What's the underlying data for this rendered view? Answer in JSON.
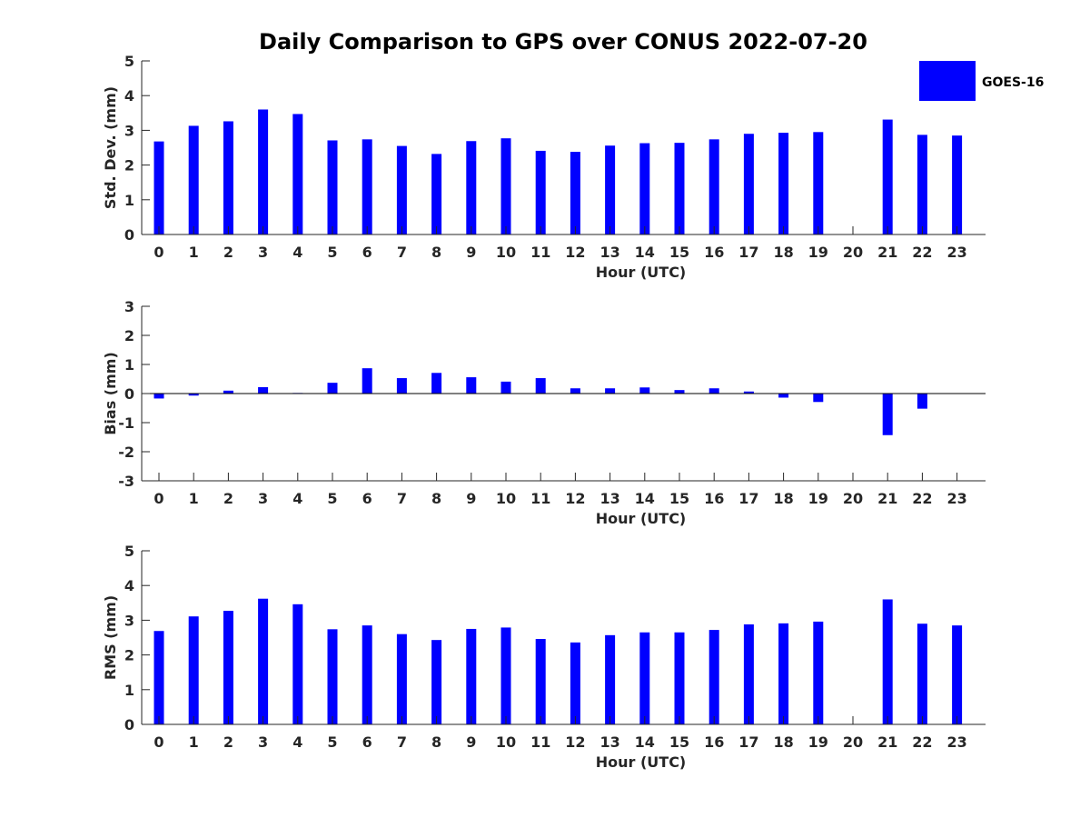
{
  "title": "Daily Comparison to GPS over CONUS 2022-07-20",
  "legend": {
    "label": "GOES-16",
    "color": "#0000ff"
  },
  "bar_color": "#0000ff",
  "chart_data": [
    {
      "type": "bar",
      "title": "Daily Comparison to GPS over CONUS 2022-07-20",
      "xlabel": "Hour (UTC)",
      "ylabel": "Std. Dev. (mm)",
      "ylim": [
        0,
        5
      ],
      "yticks": [
        "0",
        "1",
        "2",
        "3",
        "4",
        "5"
      ],
      "categories": [
        "0",
        "1",
        "2",
        "3",
        "4",
        "5",
        "6",
        "7",
        "8",
        "9",
        "10",
        "11",
        "12",
        "13",
        "14",
        "15",
        "16",
        "17",
        "18",
        "19",
        "20",
        "21",
        "22",
        "23"
      ],
      "series": [
        {
          "name": "GOES-16",
          "values": [
            2.68,
            3.13,
            3.26,
            3.6,
            3.47,
            2.71,
            2.74,
            2.55,
            2.32,
            2.69,
            2.77,
            2.41,
            2.38,
            2.56,
            2.63,
            2.64,
            2.74,
            2.9,
            2.93,
            2.95,
            0,
            3.31,
            2.87,
            2.85
          ]
        }
      ]
    },
    {
      "type": "bar",
      "xlabel": "Hour (UTC)",
      "ylabel": "Bias (mm)",
      "ylim": [
        -3,
        3
      ],
      "yticks": [
        "-3",
        "-2",
        "-1",
        "0",
        "1",
        "2",
        "3"
      ],
      "categories": [
        "0",
        "1",
        "2",
        "3",
        "4",
        "5",
        "6",
        "7",
        "8",
        "9",
        "10",
        "11",
        "12",
        "13",
        "14",
        "15",
        "16",
        "17",
        "18",
        "19",
        "20",
        "21",
        "22",
        "23"
      ],
      "series": [
        {
          "name": "GOES-16",
          "values": [
            -0.17,
            -0.07,
            0.1,
            0.22,
            0.02,
            0.37,
            0.87,
            0.53,
            0.71,
            0.56,
            0.41,
            0.53,
            0.18,
            0.18,
            0.21,
            0.12,
            0.18,
            0.07,
            -0.14,
            -0.29,
            0,
            -1.43,
            -0.52,
            0.01
          ]
        }
      ]
    },
    {
      "type": "bar",
      "xlabel": "Hour (UTC)",
      "ylabel": "RMS (mm)",
      "ylim": [
        0,
        5
      ],
      "yticks": [
        "0",
        "1",
        "2",
        "3",
        "4",
        "5"
      ],
      "categories": [
        "0",
        "1",
        "2",
        "3",
        "4",
        "5",
        "6",
        "7",
        "8",
        "9",
        "10",
        "11",
        "12",
        "13",
        "14",
        "15",
        "16",
        "17",
        "18",
        "19",
        "20",
        "21",
        "22",
        "23"
      ],
      "series": [
        {
          "name": "GOES-16",
          "values": [
            2.69,
            3.11,
            3.27,
            3.62,
            3.46,
            2.74,
            2.85,
            2.6,
            2.43,
            2.75,
            2.79,
            2.46,
            2.36,
            2.57,
            2.65,
            2.65,
            2.72,
            2.88,
            2.91,
            2.96,
            0,
            3.6,
            2.9,
            2.85
          ]
        }
      ]
    }
  ]
}
